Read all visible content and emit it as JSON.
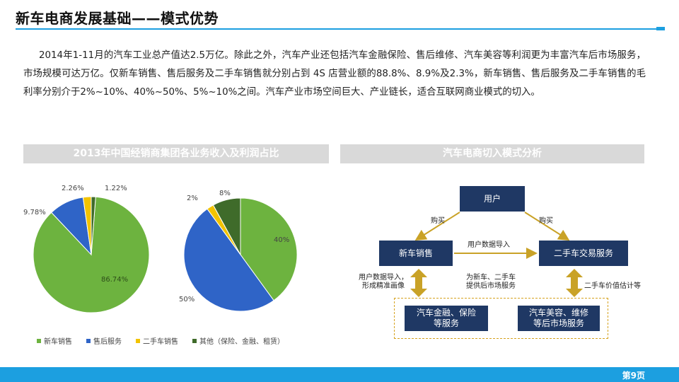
{
  "title": "新车电商发展基础——模式优势",
  "intro": "2014年1-11月的汽车工业总产值达2.5万亿。除此之外，汽车产业还包括汽车金融保险、售后维修、汽车美容等利润更为丰富汽车后市场服务，市场规模可达万亿。仅新车销售、售后服务及二手车销售就分别占到 4S 店营业额的88.8%、8.9%及2.3%，新车销售、售后服务及二手车销售的毛利率分别介于2%~10%、40%~50%、5%~10%之间。汽车产业市场空间巨大、产业链长，适合互联网商业模式的切入。",
  "left_header": "2013年中国经销商集团各业务收入及利润占比",
  "right_header": "汽车电商切入模式分析",
  "colors": {
    "new_car": "#6db33f",
    "after_sales": "#2f64c7",
    "used_car": "#f2c300",
    "other": "#3f6b2a",
    "accent": "#1c9fe0",
    "box": "#1f3864",
    "arrow": "#c9a227"
  },
  "chart_data": [
    {
      "type": "pie",
      "title": "",
      "categories": [
        "新车销售",
        "售后服务",
        "二手车销售",
        "其他（保险、金融、租赁）"
      ],
      "values": [
        86.74,
        9.78,
        2.26,
        1.22
      ],
      "labels": [
        "86.74%",
        "9.78%",
        "2.26%",
        "1.22%"
      ]
    },
    {
      "type": "pie",
      "title": "",
      "categories": [
        "新车销售",
        "售后服务",
        "二手车销售",
        "其他（保险、金融、租赁）"
      ],
      "values": [
        40,
        50,
        2,
        8
      ],
      "labels": [
        "40%",
        "50%",
        "2%",
        "8%"
      ]
    }
  ],
  "legend": [
    "新车销售",
    "售后服务",
    "二手车销售",
    "其他（保险、金融、租赁）"
  ],
  "diagram": {
    "user": "用户",
    "new_car": "新车销售",
    "used_car": "二手车交易服务",
    "finance": "汽车金融、保险\n等服务",
    "beauty": "汽车美容、维修\n等后市场服务",
    "buy_left": "购买",
    "buy_right": "购买",
    "data_import": "用户数据导入",
    "data_import_profile": "用户数据导入，\n形成精准画像",
    "after_market": "为新车、二手车\n提供后市场服务",
    "estimate": "二手车价值估计等"
  },
  "page_number": "第9页"
}
